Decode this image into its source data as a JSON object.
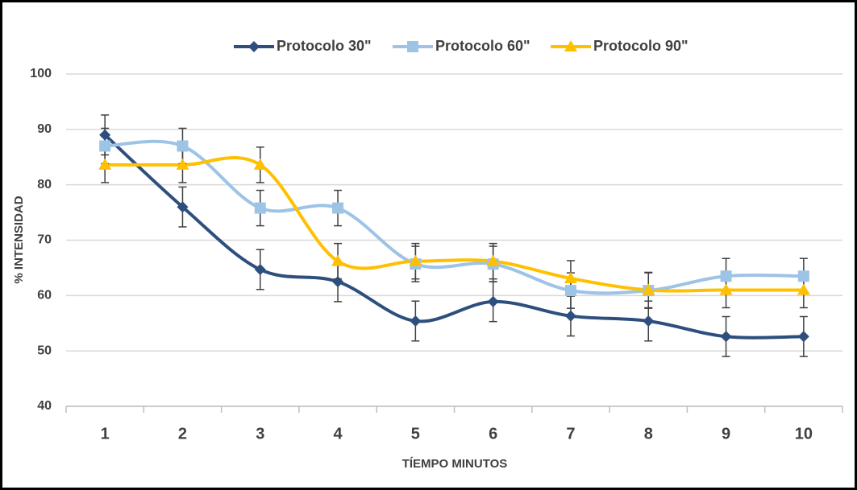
{
  "chart_data": {
    "type": "line",
    "xlabel": "TÍEMPO MINUTOS",
    "ylabel": "% INTENSIDAD",
    "categories": [
      1,
      2,
      3,
      4,
      5,
      6,
      7,
      8,
      9,
      10
    ],
    "ylim": [
      40,
      100
    ],
    "yticks": [
      40,
      50,
      60,
      70,
      80,
      90,
      100
    ],
    "grid": true,
    "smooth": true,
    "legend": "top",
    "series": [
      {
        "name": "Protocolo 30\"",
        "color": "#2e4f7e",
        "marker": "diamond",
        "values": [
          89,
          76,
          64.7,
          62.5,
          55.4,
          58.9,
          56.3,
          55.4,
          52.6,
          52.6
        ],
        "errors": [
          3.6,
          3.6,
          3.6,
          3.6,
          3.6,
          3.6,
          3.6,
          3.6,
          3.6,
          3.6
        ]
      },
      {
        "name": "Protocolo 60\"",
        "color": "#9dc3e6",
        "marker": "square",
        "values": [
          87,
          87,
          75.8,
          75.8,
          65.7,
          65.7,
          60.9,
          60.9,
          63.5,
          63.5
        ],
        "errors": [
          3.2,
          3.2,
          3.2,
          3.2,
          3.2,
          3.2,
          3.2,
          3.2,
          3.2,
          3.2
        ]
      },
      {
        "name": "Protocolo 90\"",
        "color": "#ffc000",
        "marker": "triangle",
        "values": [
          83.6,
          83.6,
          83.6,
          66.2,
          66.2,
          66.2,
          63.1,
          61,
          61,
          61
        ],
        "errors": [
          3.2,
          3.2,
          3.2,
          3.2,
          3.2,
          3.2,
          3.2,
          3.2,
          3.2,
          3.2
        ]
      }
    ]
  }
}
